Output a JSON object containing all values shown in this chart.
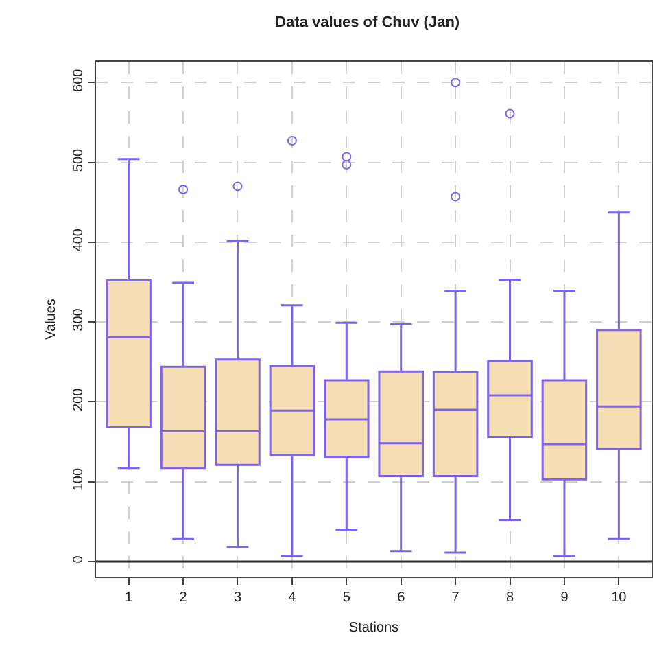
{
  "chart_data": {
    "type": "box",
    "title": "Data values of Chuv (Jan)",
    "xlabel": "Stations",
    "ylabel": "Values",
    "categories": [
      "1",
      "2",
      "3",
      "4",
      "5",
      "6",
      "7",
      "8",
      "9",
      "10"
    ],
    "series": [
      {
        "color": "#7f63e8",
        "boxes": [
          {
            "low": 117,
            "q1": 168,
            "median": 281,
            "q3": 352,
            "high": 504
          },
          {
            "low": 28,
            "q1": 117,
            "median": 163,
            "q3": 244,
            "high": 349,
            "outliers": [
              466
            ]
          },
          {
            "low": 18,
            "q1": 121,
            "median": 163,
            "q3": 253,
            "high": 401,
            "outliers": [
              470
            ]
          },
          {
            "low": 7,
            "q1": 133,
            "median": 189,
            "q3": 245,
            "high": 321,
            "outliers": [
              527
            ]
          },
          {
            "low": 40,
            "q1": 131,
            "median": 178,
            "q3": 227,
            "high": 299,
            "outliers": [
              507,
              497
            ]
          },
          {
            "low": 13,
            "q1": 107,
            "median": 148,
            "q3": 238,
            "high": 297
          },
          {
            "low": 11,
            "q1": 107,
            "median": 190,
            "q3": 237,
            "high": 339,
            "outliers": [
              600,
              457
            ]
          },
          {
            "low": 52,
            "q1": 156,
            "median": 208,
            "q3": 251,
            "high": 353,
            "outliers": [
              561
            ]
          },
          {
            "low": 7,
            "q1": 103,
            "median": 147,
            "q3": 227,
            "high": 339
          },
          {
            "low": 28,
            "q1": 141,
            "median": 194,
            "q3": 290,
            "high": 437
          }
        ]
      }
    ],
    "ylim": [
      -19,
      626
    ],
    "yticks": [
      0,
      100,
      200,
      300,
      400,
      500,
      600
    ],
    "ref_lines": [
      {
        "axis": "y",
        "value": 0,
        "color": "#333333"
      }
    ],
    "grid": true,
    "marker": "circle"
  }
}
